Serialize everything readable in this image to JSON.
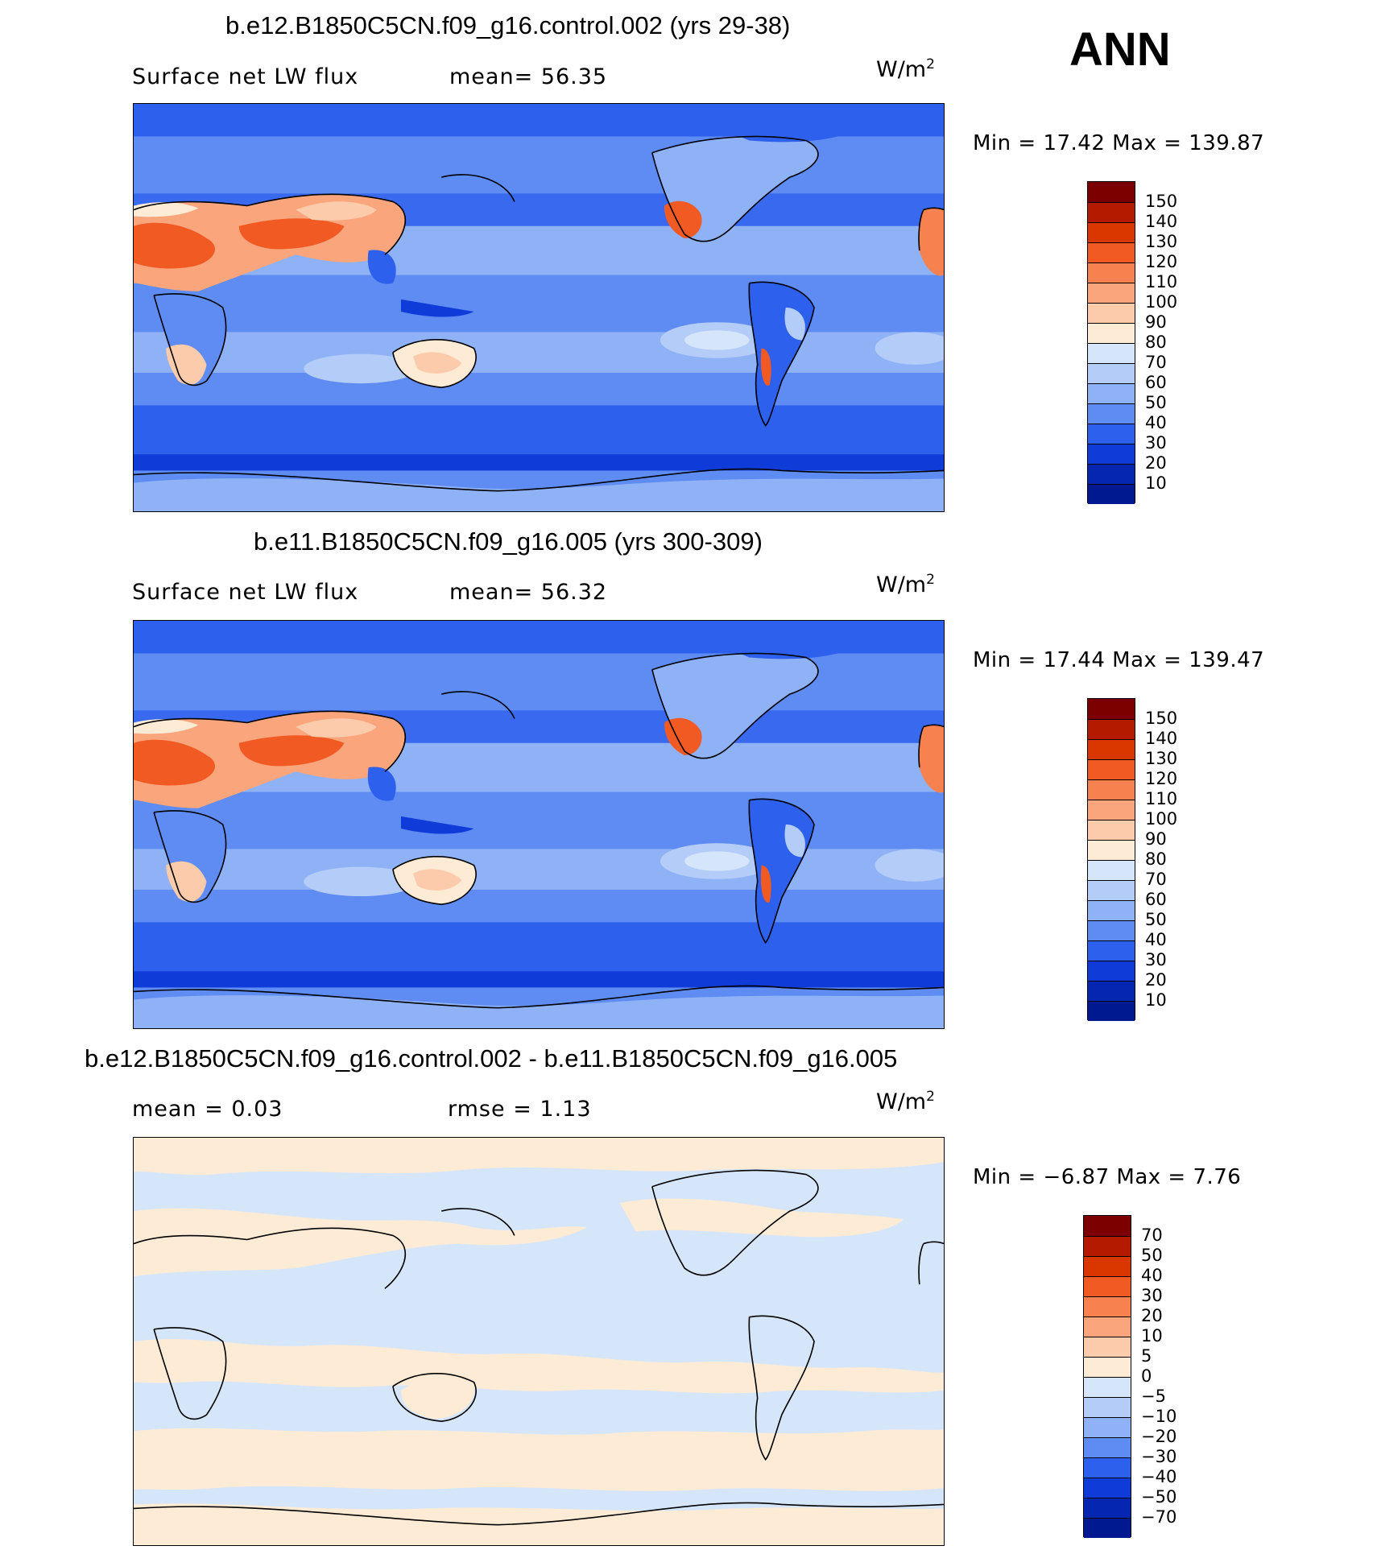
{
  "season_label": "ANN",
  "panels": [
    {
      "title": "b.e12.B1850C5CN.f09_g16.control.002 (yrs 29-38)",
      "left_label": "Surface net LW flux",
      "center_label": "mean=  56.35",
      "units_base": "W/m",
      "units_exp": "2",
      "minmax": "Min =   17.42 Max =  139.87"
    },
    {
      "title": "b.e11.B1850C5CN.f09_g16.005 (yrs 300-309)",
      "left_label": "Surface net LW flux",
      "center_label": "mean=  56.32",
      "units_base": "W/m",
      "units_exp": "2",
      "minmax": "Min =   17.44 Max =  139.47"
    },
    {
      "title": "b.e12.B1850C5CN.f09_g16.control.002 - b.e11.B1850C5CN.f09_g16.005",
      "left_label": "mean =    0.03",
      "center_label": "rmse =    1.13",
      "units_base": "W/m",
      "units_exp": "2",
      "minmax": "Min =  −6.87 Max =    7.76"
    }
  ],
  "colorbars": {
    "field": {
      "labels": [
        "150",
        "140",
        "130",
        "120",
        "110",
        "100",
        "90",
        "80",
        "70",
        "60",
        "50",
        "40",
        "30",
        "20",
        "10"
      ],
      "colors": [
        "#7d0000",
        "#b31a00",
        "#d93600",
        "#f25a24",
        "#f7824f",
        "#fba57c",
        "#fccbac",
        "#fdebd6",
        "#d6e6fa",
        "#b3ccf8",
        "#8fb1f5",
        "#5e8cf2",
        "#2e60ee",
        "#0f3cd9",
        "#0526b0",
        "#001890"
      ]
    },
    "diff": {
      "labels": [
        "70",
        "50",
        "40",
        "30",
        "20",
        "10",
        "5",
        "0",
        "−5",
        "−10",
        "−20",
        "−30",
        "−40",
        "−50",
        "−70"
      ],
      "colors": [
        "#7d0000",
        "#b31a00",
        "#d93600",
        "#f25a24",
        "#f7824f",
        "#fba57c",
        "#fccbac",
        "#fdebd6",
        "#d6e6fa",
        "#b3ccf8",
        "#8fb1f5",
        "#5e8cf2",
        "#2e60ee",
        "#0f3cd9",
        "#0526b0",
        "#001890"
      ]
    }
  }
}
